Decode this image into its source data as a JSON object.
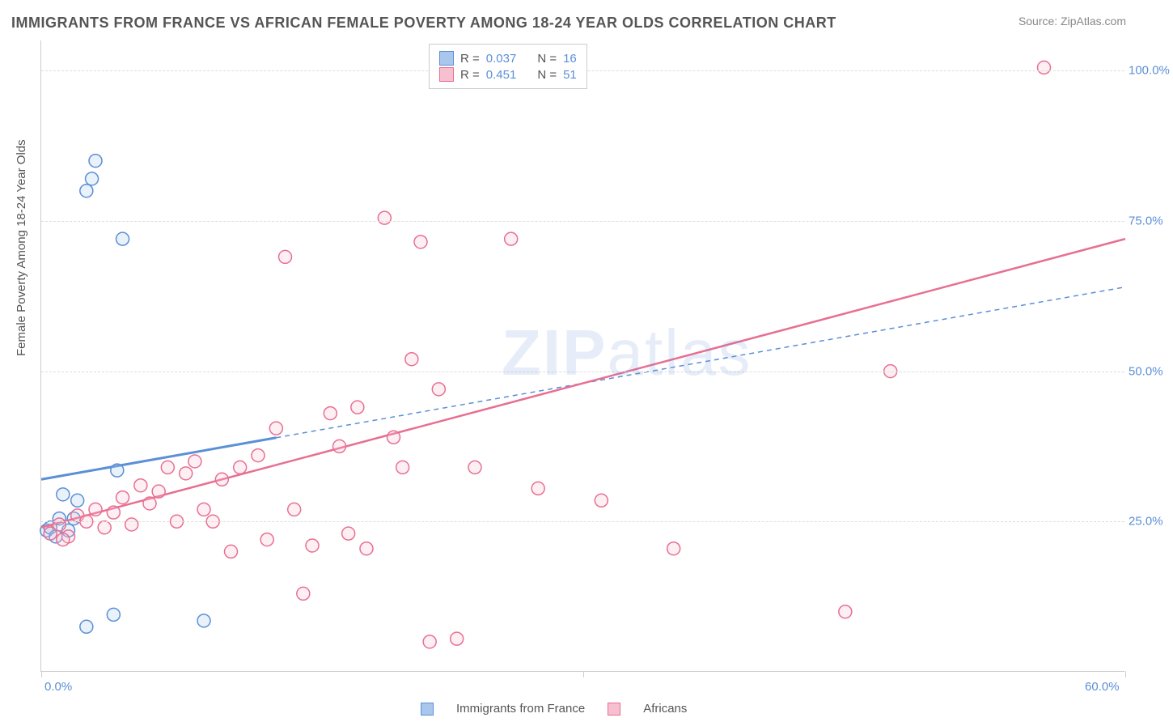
{
  "title": "IMMIGRANTS FROM FRANCE VS AFRICAN FEMALE POVERTY AMONG 18-24 YEAR OLDS CORRELATION CHART",
  "source_label": "Source:",
  "source_value": "ZipAtlas.com",
  "y_axis_title": "Female Poverty Among 18-24 Year Olds",
  "watermark": {
    "part1": "ZIP",
    "part2": "atlas"
  },
  "chart": {
    "type": "scatter",
    "background_color": "#ffffff",
    "grid_color": "#dddddd",
    "axis_color": "#cccccc",
    "tick_label_color": "#5b8fd6",
    "axis_title_color": "#555555",
    "xlim": [
      0,
      60
    ],
    "ylim": [
      0,
      105
    ],
    "x_ticks": [
      0,
      30,
      60
    ],
    "x_tick_labels": [
      "0.0%",
      "",
      "60.0%"
    ],
    "y_ticks": [
      25,
      50,
      75,
      100
    ],
    "y_tick_labels": [
      "25.0%",
      "50.0%",
      "75.0%",
      "100.0%"
    ],
    "marker_radius": 8,
    "marker_stroke_width": 1.5,
    "marker_fill_opacity": 0.25,
    "tick_label_fontsize": 15,
    "axis_title_fontsize": 15,
    "series": [
      {
        "name": "Immigrants from France",
        "color_stroke": "#5b8fd6",
        "color_fill": "#a9c6ec",
        "R": "0.037",
        "N": "16",
        "trend": {
          "x1": 0,
          "y1": 32,
          "x2": 60,
          "y2": 64,
          "solid_until_x": 13,
          "stroke_width_solid": 3,
          "stroke_width_dash": 1.5,
          "dash": "6,5"
        },
        "points": [
          [
            0.3,
            23.5
          ],
          [
            0.5,
            24
          ],
          [
            0.8,
            22.5
          ],
          [
            1.0,
            25.5
          ],
          [
            1.2,
            29.5
          ],
          [
            1.5,
            23.5
          ],
          [
            1.8,
            25.5
          ],
          [
            2.0,
            28.5
          ],
          [
            3.0,
            85
          ],
          [
            2.8,
            82
          ],
          [
            2.5,
            80
          ],
          [
            4.2,
            33.5
          ],
          [
            4.5,
            72
          ],
          [
            4.0,
            9.5
          ],
          [
            2.5,
            7.5
          ],
          [
            9.0,
            8.5
          ]
        ]
      },
      {
        "name": "Africans",
        "color_stroke": "#e86f91",
        "color_fill": "#f7c0d0",
        "R": "0.451",
        "N": "51",
        "trend": {
          "x1": 0,
          "y1": 24,
          "x2": 60,
          "y2": 72,
          "solid_until_x": 60,
          "stroke_width_solid": 2.5,
          "stroke_width_dash": 2,
          "dash": ""
        },
        "points": [
          [
            0.5,
            23
          ],
          [
            1.0,
            24.5
          ],
          [
            1.5,
            22.5
          ],
          [
            2.0,
            26
          ],
          [
            2.5,
            25
          ],
          [
            3.0,
            27
          ],
          [
            3.5,
            24
          ],
          [
            4.0,
            26.5
          ],
          [
            4.5,
            29
          ],
          [
            5.0,
            24.5
          ],
          [
            5.5,
            31
          ],
          [
            6.0,
            28
          ],
          [
            6.5,
            30
          ],
          [
            7.0,
            34
          ],
          [
            7.5,
            25
          ],
          [
            8.0,
            33
          ],
          [
            8.5,
            35
          ],
          [
            9.0,
            27
          ],
          [
            9.5,
            25
          ],
          [
            10.0,
            32
          ],
          [
            10.5,
            20
          ],
          [
            11.0,
            34
          ],
          [
            12.0,
            36
          ],
          [
            12.5,
            22
          ],
          [
            13.0,
            40.5
          ],
          [
            13.5,
            69
          ],
          [
            14.0,
            27
          ],
          [
            14.5,
            13
          ],
          [
            15.0,
            21
          ],
          [
            16.0,
            43
          ],
          [
            16.5,
            37.5
          ],
          [
            17.0,
            23
          ],
          [
            17.5,
            44
          ],
          [
            18.0,
            20.5
          ],
          [
            19.0,
            75.5
          ],
          [
            19.5,
            39
          ],
          [
            20.0,
            34
          ],
          [
            20.5,
            52
          ],
          [
            21.0,
            71.5
          ],
          [
            21.5,
            5
          ],
          [
            22.0,
            47
          ],
          [
            23.0,
            5.5
          ],
          [
            24.0,
            34
          ],
          [
            26.0,
            72
          ],
          [
            27.5,
            30.5
          ],
          [
            31.0,
            28.5
          ],
          [
            35.0,
            20.5
          ],
          [
            44.5,
            10
          ],
          [
            47.0,
            50
          ],
          [
            55.5,
            100.5
          ],
          [
            1.2,
            22
          ]
        ]
      }
    ]
  },
  "top_legend": {
    "R_label": "R =",
    "N_label": "N ="
  },
  "x_legend": {
    "s1": "Immigrants from France",
    "s2": "Africans"
  }
}
